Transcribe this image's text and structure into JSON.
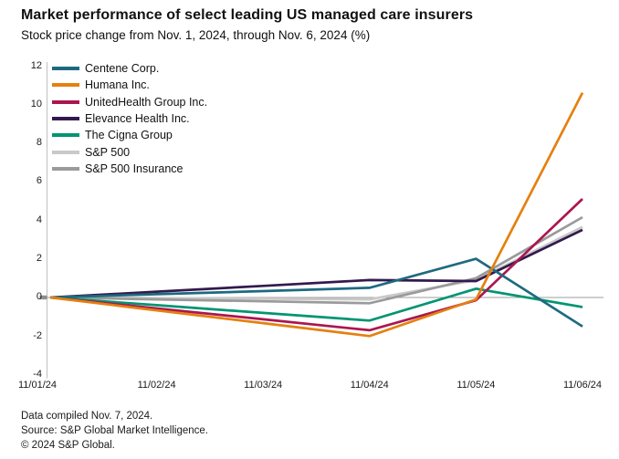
{
  "header": {
    "title": "Market performance of select leading US managed care insurers",
    "subtitle": "Stock price change from Nov. 1, 2024, through Nov. 6, 2024 (%)"
  },
  "footer": {
    "compiled": "Data compiled Nov. 7, 2024.",
    "source": "Source: S&P Global Market Intelligence.",
    "copyright": "© 2024 S&P Global."
  },
  "chart_data": {
    "type": "line",
    "title": "Market performance of select leading US managed care insurers",
    "subtitle": "Stock price change from Nov. 1, 2024, through Nov. 6, 2024 (%)",
    "x": [
      "11/01/24",
      "11/02/24",
      "11/03/24",
      "11/04/24",
      "11/05/24",
      "11/06/24"
    ],
    "ylim": [
      -4,
      12
    ],
    "y_ticks": [
      12,
      10,
      8,
      6,
      4,
      2,
      0,
      -2,
      -4
    ],
    "grid": "zero-baseline-only",
    "legend_position": "top-left",
    "axis_color": "#c6c6c6",
    "zero_line_color": "#9e9e9e",
    "series": [
      {
        "name": "Centene Corp.",
        "color": "#1d6a80",
        "values": [
          0,
          0.17,
          0.33,
          0.5,
          2.0,
          -1.5
        ]
      },
      {
        "name": "Humana Inc.",
        "color": "#e5800f",
        "values": [
          0,
          -0.67,
          -1.33,
          -2.0,
          -0.1,
          10.6
        ]
      },
      {
        "name": "UnitedHealth Group Inc.",
        "color": "#aa1650",
        "values": [
          0,
          -0.57,
          -1.13,
          -1.7,
          -0.15,
          5.1
        ]
      },
      {
        "name": "Elevance Health Inc.",
        "color": "#331a4d",
        "values": [
          0,
          0.3,
          0.6,
          0.9,
          0.85,
          3.5
        ]
      },
      {
        "name": "The Cigna Group",
        "color": "#009572",
        "values": [
          0,
          -0.4,
          -0.8,
          -1.2,
          0.45,
          -0.5
        ]
      },
      {
        "name": "S&P 500",
        "color": "#c9c9c9",
        "values": [
          0,
          -0.03,
          -0.07,
          -0.1,
          0.9,
          3.65
        ]
      },
      {
        "name": "S&P 500 Insurance",
        "color": "#9a9a9a",
        "values": [
          0,
          -0.1,
          -0.2,
          -0.3,
          1.0,
          4.15
        ]
      }
    ]
  }
}
